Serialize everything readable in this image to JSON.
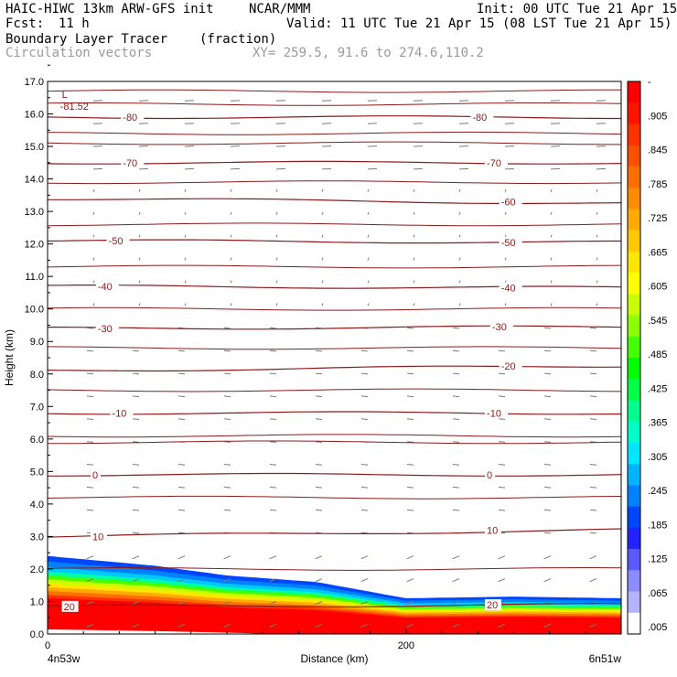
{
  "header": {
    "model_line": "HAIC-HIWC 13km ARW-GFS init",
    "org": "NCAR/MMM",
    "init": "Init: 00 UTC Tue 21 Apr 15",
    "fcst_label": "Fcst:",
    "fcst_value": "11 h",
    "valid": "Valid: 11 UTC Tue 21 Apr 15 (08 LST Tue 21 Apr 15)",
    "field1_name": "Boundary Layer Tracer",
    "field1_units": "(fraction)",
    "field2_name": "Circulation vectors",
    "xy_range": "XY= 259.5, 91.6 to 274.6,110.2"
  },
  "chart_data": {
    "type": "cross-section",
    "ylabel": "Height (km)",
    "xlabel": "Distance (km)",
    "ylim": [
      0,
      17
    ],
    "xlim": [
      0,
      320
    ],
    "y_ticks": [
      "0.0",
      "1.0",
      "2.0",
      "3.0",
      "4.0",
      "5.0",
      "6.0",
      "7.0",
      "8.0",
      "9.0",
      "10.0",
      "11.0",
      "12.0",
      "13.0",
      "14.0",
      "15.0",
      "16.0",
      "17.0"
    ],
    "x_ticks": [
      {
        "value": 0,
        "label": "0"
      },
      {
        "value": 200,
        "label": "200"
      }
    ],
    "x_end_labels": {
      "left": "4n53w",
      "right": "6n51w"
    },
    "tracer_top_km": [
      {
        "x": 0,
        "y": 2.4
      },
      {
        "x": 60,
        "y": 2.1
      },
      {
        "x": 100,
        "y": 1.8
      },
      {
        "x": 150,
        "y": 1.6
      },
      {
        "x": 200,
        "y": 1.1
      },
      {
        "x": 260,
        "y": 1.15
      },
      {
        "x": 320,
        "y": 1.1
      }
    ],
    "min_label": {
      "text": "L",
      "value": "-81.52",
      "x": 8,
      "y": 16.6
    },
    "temperature_contours": [
      {
        "label": "-80",
        "start": 15.9,
        "end": 15.9,
        "label_positions": [
          {
            "x": 42,
            "y": 15.9
          },
          {
            "x": 237,
            "y": 15.9
          }
        ]
      },
      {
        "label": "-70",
        "start": 14.5,
        "end": 14.5,
        "label_positions": [
          {
            "x": 42,
            "y": 14.5
          },
          {
            "x": 245,
            "y": 14.5
          }
        ]
      },
      {
        "label": "-60",
        "start": 13.4,
        "end": 13.25,
        "label_positions": [
          {
            "x": 253,
            "y": 13.3
          }
        ]
      },
      {
        "label": "-50",
        "start": 12.1,
        "end": 12.05,
        "label_positions": [
          {
            "x": 34,
            "y": 12.1
          },
          {
            "x": 253,
            "y": 12.05
          }
        ]
      },
      {
        "label": "-40",
        "start": 10.7,
        "end": 10.65,
        "label_positions": [
          {
            "x": 28,
            "y": 10.7
          },
          {
            "x": 253,
            "y": 10.65
          }
        ]
      },
      {
        "label": "-30",
        "start": 9.4,
        "end": 9.45,
        "label_positions": [
          {
            "x": 28,
            "y": 9.4
          },
          {
            "x": 248,
            "y": 9.45
          }
        ]
      },
      {
        "label": "-20",
        "start": 8.1,
        "end": 8.25,
        "label_positions": [
          {
            "x": 253,
            "y": 8.25
          }
        ]
      },
      {
        "label": "-10",
        "start": 6.8,
        "end": 6.8,
        "label_positions": [
          {
            "x": 36,
            "y": 6.8
          },
          {
            "x": 245,
            "y": 6.8
          }
        ]
      },
      {
        "label": "0",
        "start": 4.9,
        "end": 4.9,
        "label_positions": [
          {
            "x": 25,
            "y": 4.9
          },
          {
            "x": 245,
            "y": 4.9
          }
        ]
      },
      {
        "label": "10",
        "start": 3.0,
        "end": 3.2,
        "label_positions": [
          {
            "x": 25,
            "y": 3.0
          },
          {
            "x": 245,
            "y": 3.2
          }
        ]
      },
      {
        "label": "20",
        "start": 0.85,
        "end": 0.9,
        "label_positions": [
          {
            "x": 9,
            "y": 0.85
          },
          {
            "x": 245,
            "y": 0.9
          }
        ]
      }
    ],
    "extra_contours_km": [
      16.7,
      16.3,
      15.4,
      15.1,
      13.9,
      12.6,
      11.3,
      10.0,
      8.8,
      7.5,
      6.1,
      5.9,
      4.2,
      2.0
    ],
    "colorbar": {
      "labels": [
        "-",
        ".905",
        ".845",
        ".785",
        ".725",
        ".665",
        ".605",
        ".545",
        ".485",
        ".425",
        ".365",
        ".305",
        ".245",
        ".185",
        ".125",
        ".065",
        ".005"
      ],
      "colors": [
        "#ffffff",
        "#b4b4ff",
        "#8c8cff",
        "#5a5aff",
        "#2323ff",
        "#0046ff",
        "#0082ff",
        "#00b4ff",
        "#00e6ff",
        "#00ffc8",
        "#00ff8c",
        "#00ff46",
        "#00ff00",
        "#46ff00",
        "#8cff00",
        "#c8ff00",
        "#ffff00",
        "#ffe600",
        "#ffc800",
        "#ffaa00",
        "#ff8c00",
        "#ff6e00",
        "#ff5000",
        "#ff3200",
        "#ff1400",
        "#ff0000"
      ]
    }
  }
}
